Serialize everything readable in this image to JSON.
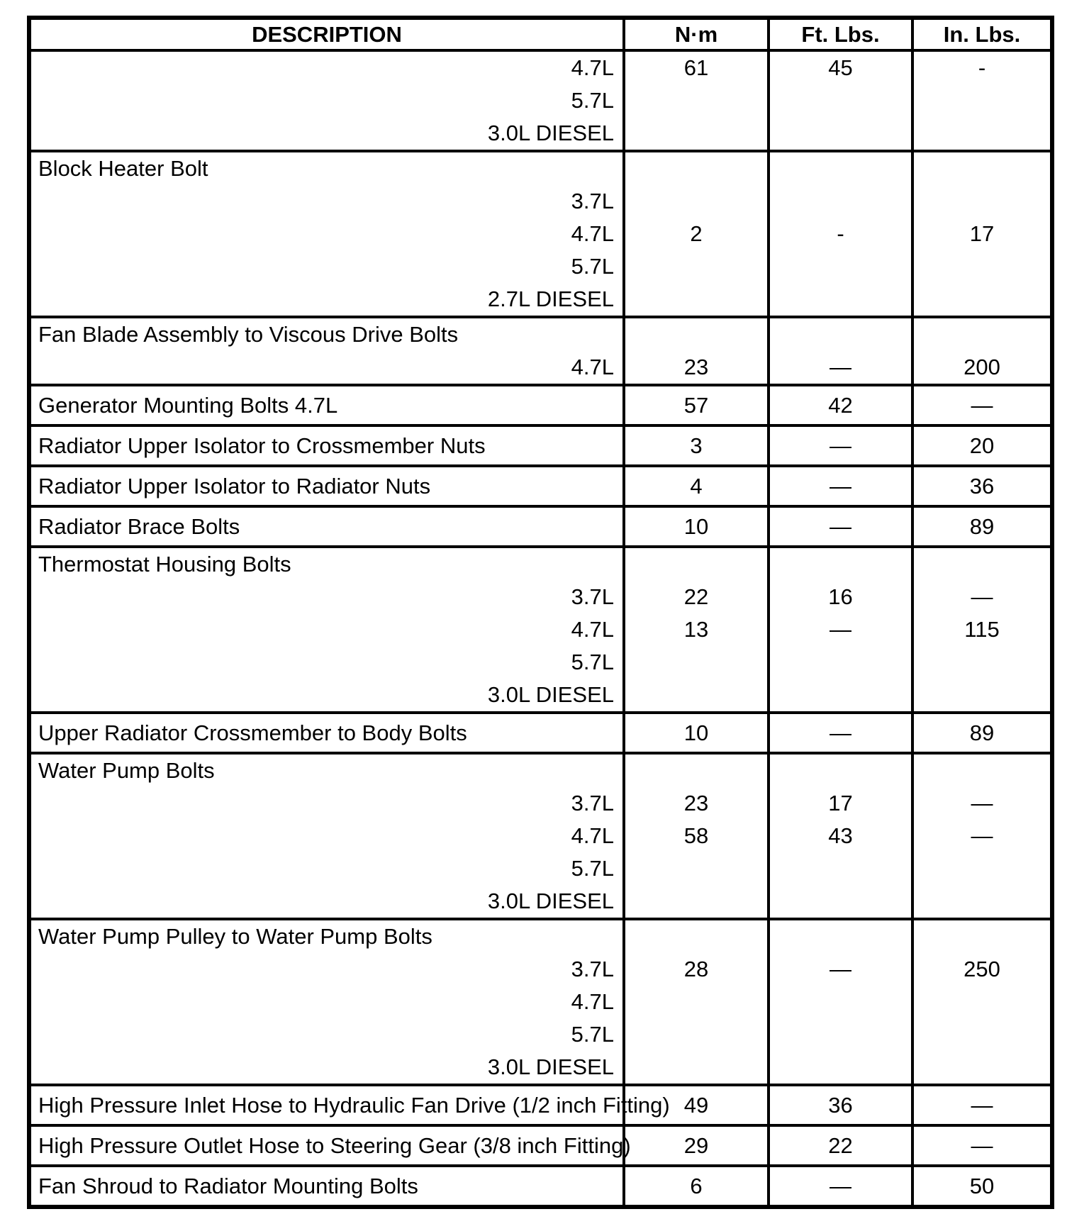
{
  "table": {
    "header": {
      "description": "DESCRIPTION",
      "nm": "N·m",
      "ft": "Ft. Lbs.",
      "in": "In. Lbs."
    },
    "rows": [
      {
        "lines": [
          {
            "label": "4.7L",
            "nm": "61",
            "ft": "45",
            "in": "-"
          },
          {
            "label": "5.7L"
          },
          {
            "label": "3.0L DIESEL"
          }
        ]
      },
      {
        "title": "Block Heater Bolt",
        "lines": [
          {
            "label": "3.7L"
          },
          {
            "label": "4.7L",
            "nm": "2",
            "ft": "-",
            "in": "17"
          },
          {
            "label": "5.7L"
          },
          {
            "label": "2.7L DIESEL"
          }
        ]
      },
      {
        "title": "Fan Blade Assembly to Viscous Drive Bolts",
        "lines": [
          {
            "label": "4.7L",
            "nm": "23",
            "ft": "—",
            "in": "200"
          }
        ]
      },
      {
        "title": "Generator Mounting Bolts 4.7L",
        "nm": "57",
        "ft": "42",
        "in": "—"
      },
      {
        "title": "Radiator Upper Isolator to Crossmember Nuts",
        "nm": "3",
        "ft": "—",
        "in": "20"
      },
      {
        "title": "Radiator Upper Isolator to Radiator Nuts",
        "nm": "4",
        "ft": "—",
        "in": "36"
      },
      {
        "title": "Radiator Brace Bolts",
        "nm": "10",
        "ft": "—",
        "in": "89"
      },
      {
        "title": "Thermostat Housing Bolts",
        "lines": [
          {
            "label": "3.7L",
            "nm": "22",
            "ft": "16",
            "in": "—"
          },
          {
            "label": "4.7L",
            "nm": "13",
            "ft": "—",
            "in": "115"
          },
          {
            "label": "5.7L"
          },
          {
            "label": "3.0L DIESEL"
          }
        ]
      },
      {
        "title": "Upper Radiator Crossmember to Body Bolts",
        "nm": "10",
        "ft": "—",
        "in": "89"
      },
      {
        "title": "Water Pump Bolts",
        "lines": [
          {
            "label": "3.7L",
            "nm": "23",
            "ft": "17",
            "in": "—"
          },
          {
            "label": "4.7L",
            "nm": "58",
            "ft": "43",
            "in": "—"
          },
          {
            "label": "5.7L"
          },
          {
            "label": "3.0L DIESEL"
          }
        ]
      },
      {
        "title": "Water Pump Pulley to Water Pump Bolts",
        "lines": [
          {
            "label": "3.7L",
            "nm": "28",
            "ft": "—",
            "in": "250"
          },
          {
            "label": "4.7L"
          },
          {
            "label": "5.7L"
          },
          {
            "label": "3.0L DIESEL"
          }
        ]
      },
      {
        "title": "High Pressure Inlet Hose to Hydraulic Fan Drive (1/2 inch Fitting)",
        "nm": "49",
        "ft": "36",
        "in": "—"
      },
      {
        "title": "High Pressure Outlet Hose to Steering Gear (3/8 inch Fitting)",
        "nm": "29",
        "ft": "22",
        "in": "—"
      },
      {
        "title": "Fan Shroud to Radiator Mounting Bolts",
        "nm": "6",
        "ft": "—",
        "in": "50"
      }
    ]
  }
}
